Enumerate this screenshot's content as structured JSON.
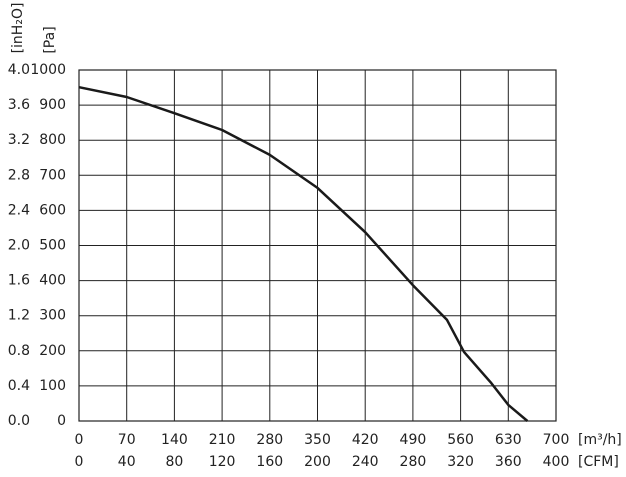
{
  "chart_data": {
    "type": "line",
    "x": [
      0,
      70,
      140,
      210,
      280,
      350,
      420,
      490,
      540,
      565,
      605,
      630,
      658
    ],
    "values": [
      951,
      923,
      877,
      829,
      758,
      664,
      538,
      387,
      288,
      197,
      108,
      46,
      0
    ],
    "color": "#1a1a1a",
    "xlabel": "[m³/h]",
    "ylabel": "[Pa]",
    "x2label": "[CFM]",
    "y2label": "[inH₂O]",
    "xlim": [
      0,
      700
    ],
    "xticks": [
      0,
      70,
      140,
      210,
      280,
      350,
      420,
      490,
      560,
      630,
      700
    ],
    "ylim": [
      0,
      1000
    ],
    "yticks": [
      0,
      100,
      200,
      300,
      400,
      500,
      600,
      700,
      800,
      900,
      1000
    ],
    "x2lim": [
      0,
      400
    ],
    "x2ticks": [
      0,
      40,
      80,
      120,
      160,
      200,
      240,
      280,
      320,
      360,
      400
    ],
    "y2lim": [
      0,
      4
    ],
    "y2ticks": [
      {
        "value": 0,
        "label": "0.0"
      },
      0.4,
      0.8,
      1.2,
      1.6,
      {
        "value": 2,
        "label": "2.0"
      },
      2.4,
      2.8,
      3.2,
      3.6,
      {
        "value": 4,
        "label": "4.0"
      }
    ],
    "grid": true
  }
}
